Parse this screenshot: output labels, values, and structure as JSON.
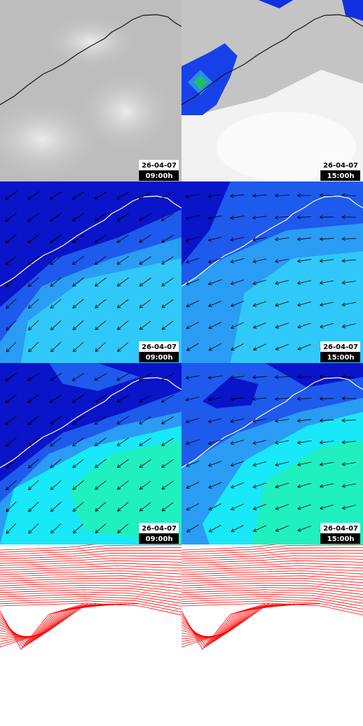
{
  "panels": [
    {
      "date": "26-04-07",
      "time": "09:00h"
    },
    {
      "date": "26-04-07",
      "time": "15:00h"
    },
    {
      "date": "26-04-07",
      "time": "09:00h"
    },
    {
      "date": "26-04-07",
      "time": "15:00h"
    },
    {
      "date": "26-04-07",
      "time": "09:00h"
    },
    {
      "date": "26-04-07",
      "time": "15:00h"
    }
  ]
}
